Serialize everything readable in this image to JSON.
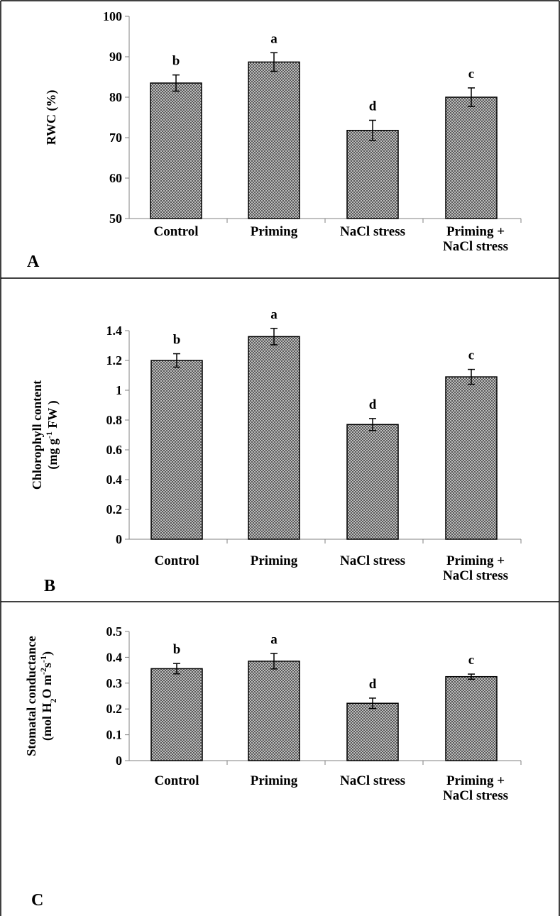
{
  "chart_data": [
    {
      "type": "bar",
      "panel_letter": "A",
      "ylabel_lines": [
        "RWC (%)"
      ],
      "categories": [
        [
          "Control"
        ],
        [
          "Priming"
        ],
        [
          "NaCl stress"
        ],
        [
          "Priming +",
          "NaCl  stress"
        ]
      ],
      "values": [
        83.5,
        88.7,
        71.8,
        80.0
      ],
      "errors": [
        2.0,
        2.3,
        2.5,
        2.3
      ],
      "significance": [
        "b",
        "a",
        "d",
        "c"
      ],
      "ylim": [
        50,
        100
      ],
      "yticks": [
        50,
        60,
        70,
        80,
        90,
        100
      ],
      "ytick_labels": [
        "50",
        "60",
        "70",
        "80",
        "90",
        "100"
      ]
    },
    {
      "type": "bar",
      "panel_letter": "B",
      "ylabel_lines": [
        "Chlorophyll content",
        "(mg g-1 FW )"
      ],
      "categories": [
        [
          "Control"
        ],
        [
          "Priming"
        ],
        [
          "NaCl stress"
        ],
        [
          "Priming +",
          "NaCl  stress"
        ]
      ],
      "values": [
        1.2,
        1.36,
        0.77,
        1.09
      ],
      "errors": [
        0.045,
        0.055,
        0.04,
        0.05
      ],
      "significance": [
        "b",
        "a",
        "d",
        "c"
      ],
      "ylim": [
        0,
        1.4
      ],
      "yticks": [
        0,
        0.2,
        0.4,
        0.6,
        0.8,
        1.0,
        1.2,
        1.4
      ],
      "ytick_labels": [
        "0",
        "0.2",
        "0.4",
        "0.6",
        "0.8",
        "1",
        "1.2",
        "1.4"
      ]
    },
    {
      "type": "bar",
      "panel_letter": "C",
      "ylabel_lines": [
        "Stomatal conductance",
        "(mol H2O m-2s-1)"
      ],
      "categories": [
        [
          "Control"
        ],
        [
          "Priming"
        ],
        [
          "NaCl stress"
        ],
        [
          "Priming +",
          "NaCl  stress"
        ]
      ],
      "values": [
        0.356,
        0.385,
        0.222,
        0.325
      ],
      "errors": [
        0.02,
        0.03,
        0.02,
        0.01
      ],
      "significance": [
        "b",
        "a",
        "d",
        "c"
      ],
      "ylim": [
        0,
        0.5
      ],
      "yticks": [
        0,
        0.1,
        0.2,
        0.3,
        0.4,
        0.5
      ],
      "ytick_labels": [
        "0",
        "0.1",
        "0.2",
        "0.3",
        "0.4",
        "0.5"
      ]
    }
  ]
}
